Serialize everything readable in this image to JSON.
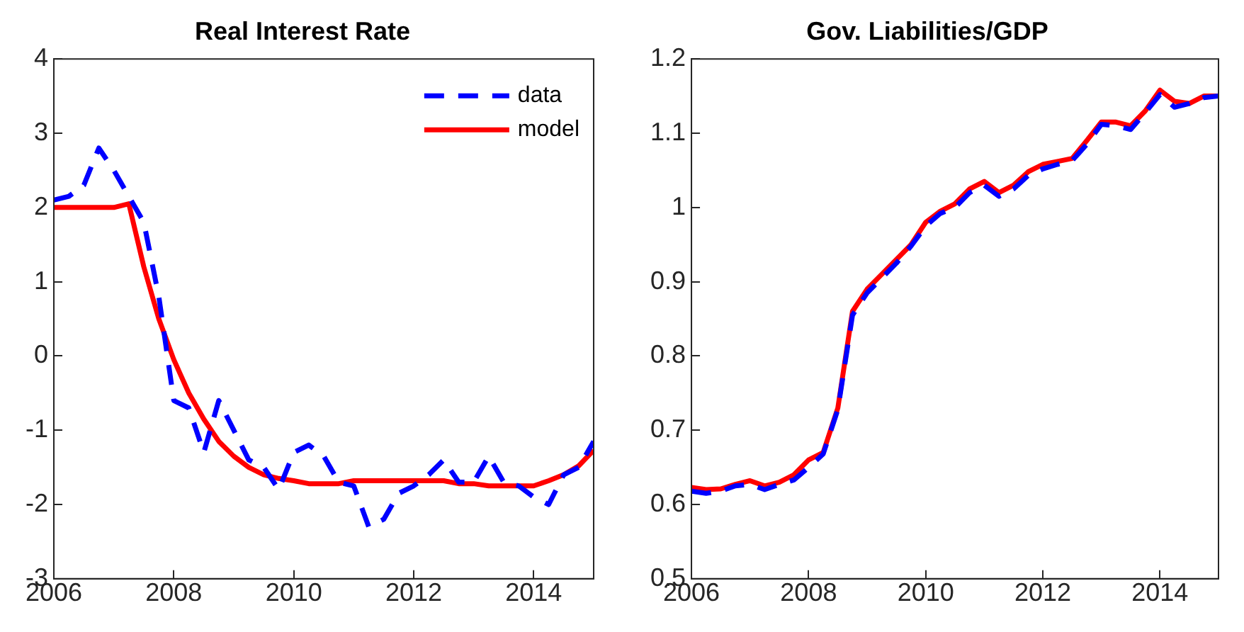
{
  "chart_data": [
    {
      "type": "line",
      "title": "Real Interest Rate",
      "x": [
        2006,
        2006.25,
        2006.5,
        2006.75,
        2007,
        2007.25,
        2007.5,
        2007.75,
        2008,
        2008.25,
        2008.5,
        2008.75,
        2009,
        2009.25,
        2009.5,
        2009.75,
        2010,
        2010.25,
        2010.5,
        2010.75,
        2011,
        2011.25,
        2011.5,
        2011.75,
        2012,
        2012.25,
        2012.5,
        2012.75,
        2013,
        2013.25,
        2013.5,
        2013.75,
        2014,
        2014.25,
        2014.5,
        2014.75,
        2015
      ],
      "xlim": [
        2006,
        2015
      ],
      "xticks": [
        2006,
        2008,
        2010,
        2012,
        2014
      ],
      "ylim": [
        -3,
        4
      ],
      "yticks": [
        -3,
        -2,
        -1,
        0,
        1,
        2,
        3,
        4
      ],
      "grid": false,
      "legend": "top right",
      "marker": "none",
      "series": [
        {
          "name": "data",
          "color": "#0000ff",
          "line_style": "dashed",
          "values": [
            2.1,
            2.15,
            2.3,
            2.8,
            2.5,
            2.15,
            1.8,
            0.8,
            -0.6,
            -0.7,
            -1.3,
            -0.6,
            -1.0,
            -1.4,
            -1.5,
            -1.8,
            -1.3,
            -1.2,
            -1.35,
            -1.7,
            -1.75,
            -2.3,
            -2.2,
            -1.85,
            -1.75,
            -1.6,
            -1.4,
            -1.7,
            -1.7,
            -1.35,
            -1.7,
            -1.75,
            -1.9,
            -2.0,
            -1.6,
            -1.5,
            -1.15
          ]
        },
        {
          "name": "model",
          "color": "#ff0000",
          "line_style": "solid",
          "values": [
            2.0,
            2.0,
            2.0,
            2.0,
            2.0,
            2.05,
            1.2,
            0.5,
            -0.05,
            -0.5,
            -0.85,
            -1.15,
            -1.35,
            -1.5,
            -1.6,
            -1.65,
            -1.68,
            -1.72,
            -1.72,
            -1.72,
            -1.68,
            -1.68,
            -1.68,
            -1.68,
            -1.68,
            -1.68,
            -1.68,
            -1.72,
            -1.72,
            -1.75,
            -1.75,
            -1.75,
            -1.75,
            -1.68,
            -1.6,
            -1.48,
            -1.27
          ]
        }
      ]
    },
    {
      "type": "line",
      "title": "Gov. Liabilities/GDP",
      "x": [
        2006,
        2006.25,
        2006.5,
        2006.75,
        2007,
        2007.25,
        2007.5,
        2007.75,
        2008,
        2008.25,
        2008.5,
        2008.75,
        2009,
        2009.25,
        2009.5,
        2009.75,
        2010,
        2010.25,
        2010.5,
        2010.75,
        2011,
        2011.25,
        2011.5,
        2011.75,
        2012,
        2012.25,
        2012.5,
        2012.75,
        2013,
        2013.25,
        2013.5,
        2013.75,
        2014,
        2014.25,
        2014.5,
        2014.75,
        2015
      ],
      "xlim": [
        2006,
        2015
      ],
      "xticks": [
        2006,
        2008,
        2010,
        2012,
        2014
      ],
      "ylim": [
        0.5,
        1.2
      ],
      "yticks": [
        0.5,
        0.6,
        0.7,
        0.8,
        0.9,
        1,
        1.1,
        1.2
      ],
      "grid": false,
      "legend": false,
      "marker": "none",
      "series": [
        {
          "color": "#0000ff",
          "line_style": "dashed",
          "values": [
            0.618,
            0.615,
            0.618,
            0.625,
            0.627,
            0.62,
            0.627,
            0.633,
            0.65,
            0.668,
            0.728,
            0.855,
            0.885,
            0.905,
            0.925,
            0.948,
            0.975,
            0.992,
            1.0,
            1.02,
            1.03,
            1.015,
            1.025,
            1.043,
            1.052,
            1.058,
            1.063,
            1.085,
            1.112,
            1.11,
            1.105,
            1.128,
            1.152,
            1.135,
            1.14,
            1.148,
            1.15
          ]
        },
        {
          "color": "#ff0000",
          "line_style": "solid",
          "values": [
            0.623,
            0.62,
            0.621,
            0.627,
            0.632,
            0.625,
            0.63,
            0.64,
            0.66,
            0.67,
            0.73,
            0.86,
            0.89,
            0.91,
            0.93,
            0.95,
            0.98,
            0.995,
            1.005,
            1.025,
            1.035,
            1.02,
            1.03,
            1.048,
            1.058,
            1.062,
            1.066,
            1.09,
            1.115,
            1.115,
            1.11,
            1.13,
            1.158,
            1.143,
            1.14,
            1.15,
            1.15
          ]
        }
      ]
    }
  ]
}
